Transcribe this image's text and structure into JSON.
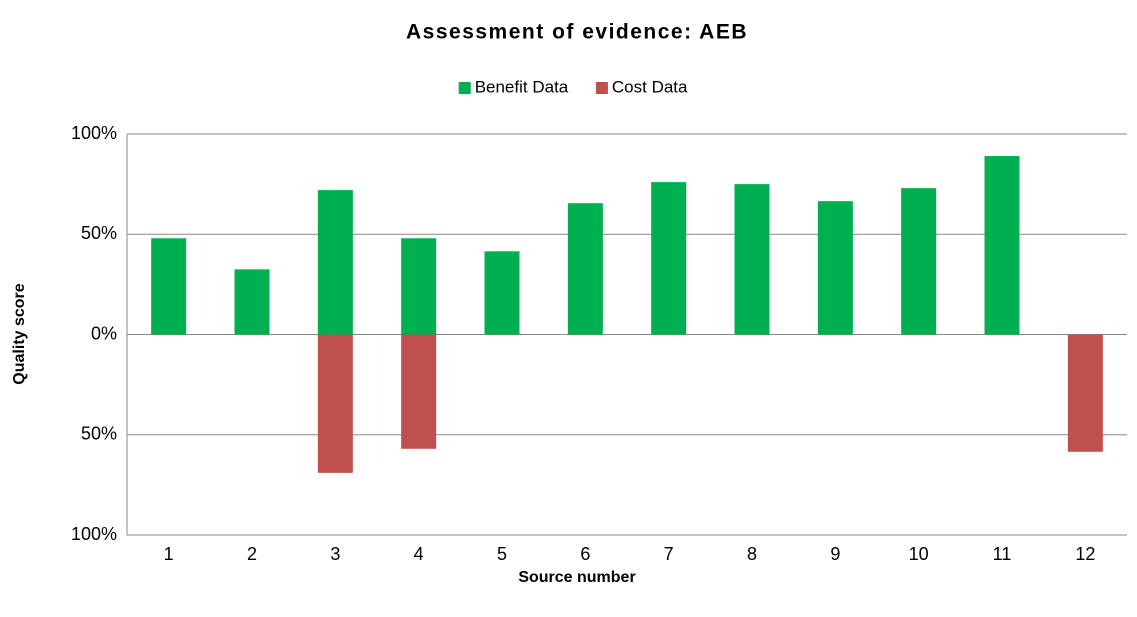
{
  "chart_data": {
    "type": "bar",
    "title": "Assessment of evidence: AEB",
    "x_label": "Source number",
    "y_label": "Quality score",
    "categories": [
      "1",
      "2",
      "3",
      "4",
      "5",
      "6",
      "7",
      "8",
      "9",
      "10",
      "11",
      "12"
    ],
    "series": [
      {
        "name": "Benefit Data",
        "color": "#00b050",
        "values": [
          48,
          32.5,
          72,
          48,
          41.5,
          65.5,
          76,
          75,
          66.5,
          73,
          89,
          null
        ]
      },
      {
        "name": "Cost Data",
        "color": "#c0504d",
        "values": [
          null,
          null,
          -69,
          -57,
          null,
          null,
          null,
          null,
          null,
          null,
          null,
          -58.5
        ]
      }
    ],
    "ylim": [
      -100,
      100
    ],
    "yticks": [
      {
        "value": -100,
        "label": "100%"
      },
      {
        "value": -50,
        "label": "50%"
      },
      {
        "value": 0,
        "label": "0%"
      },
      {
        "value": 50,
        "label": "50%"
      },
      {
        "value": 100,
        "label": "100%"
      }
    ],
    "grid": true,
    "legend": "top"
  }
}
